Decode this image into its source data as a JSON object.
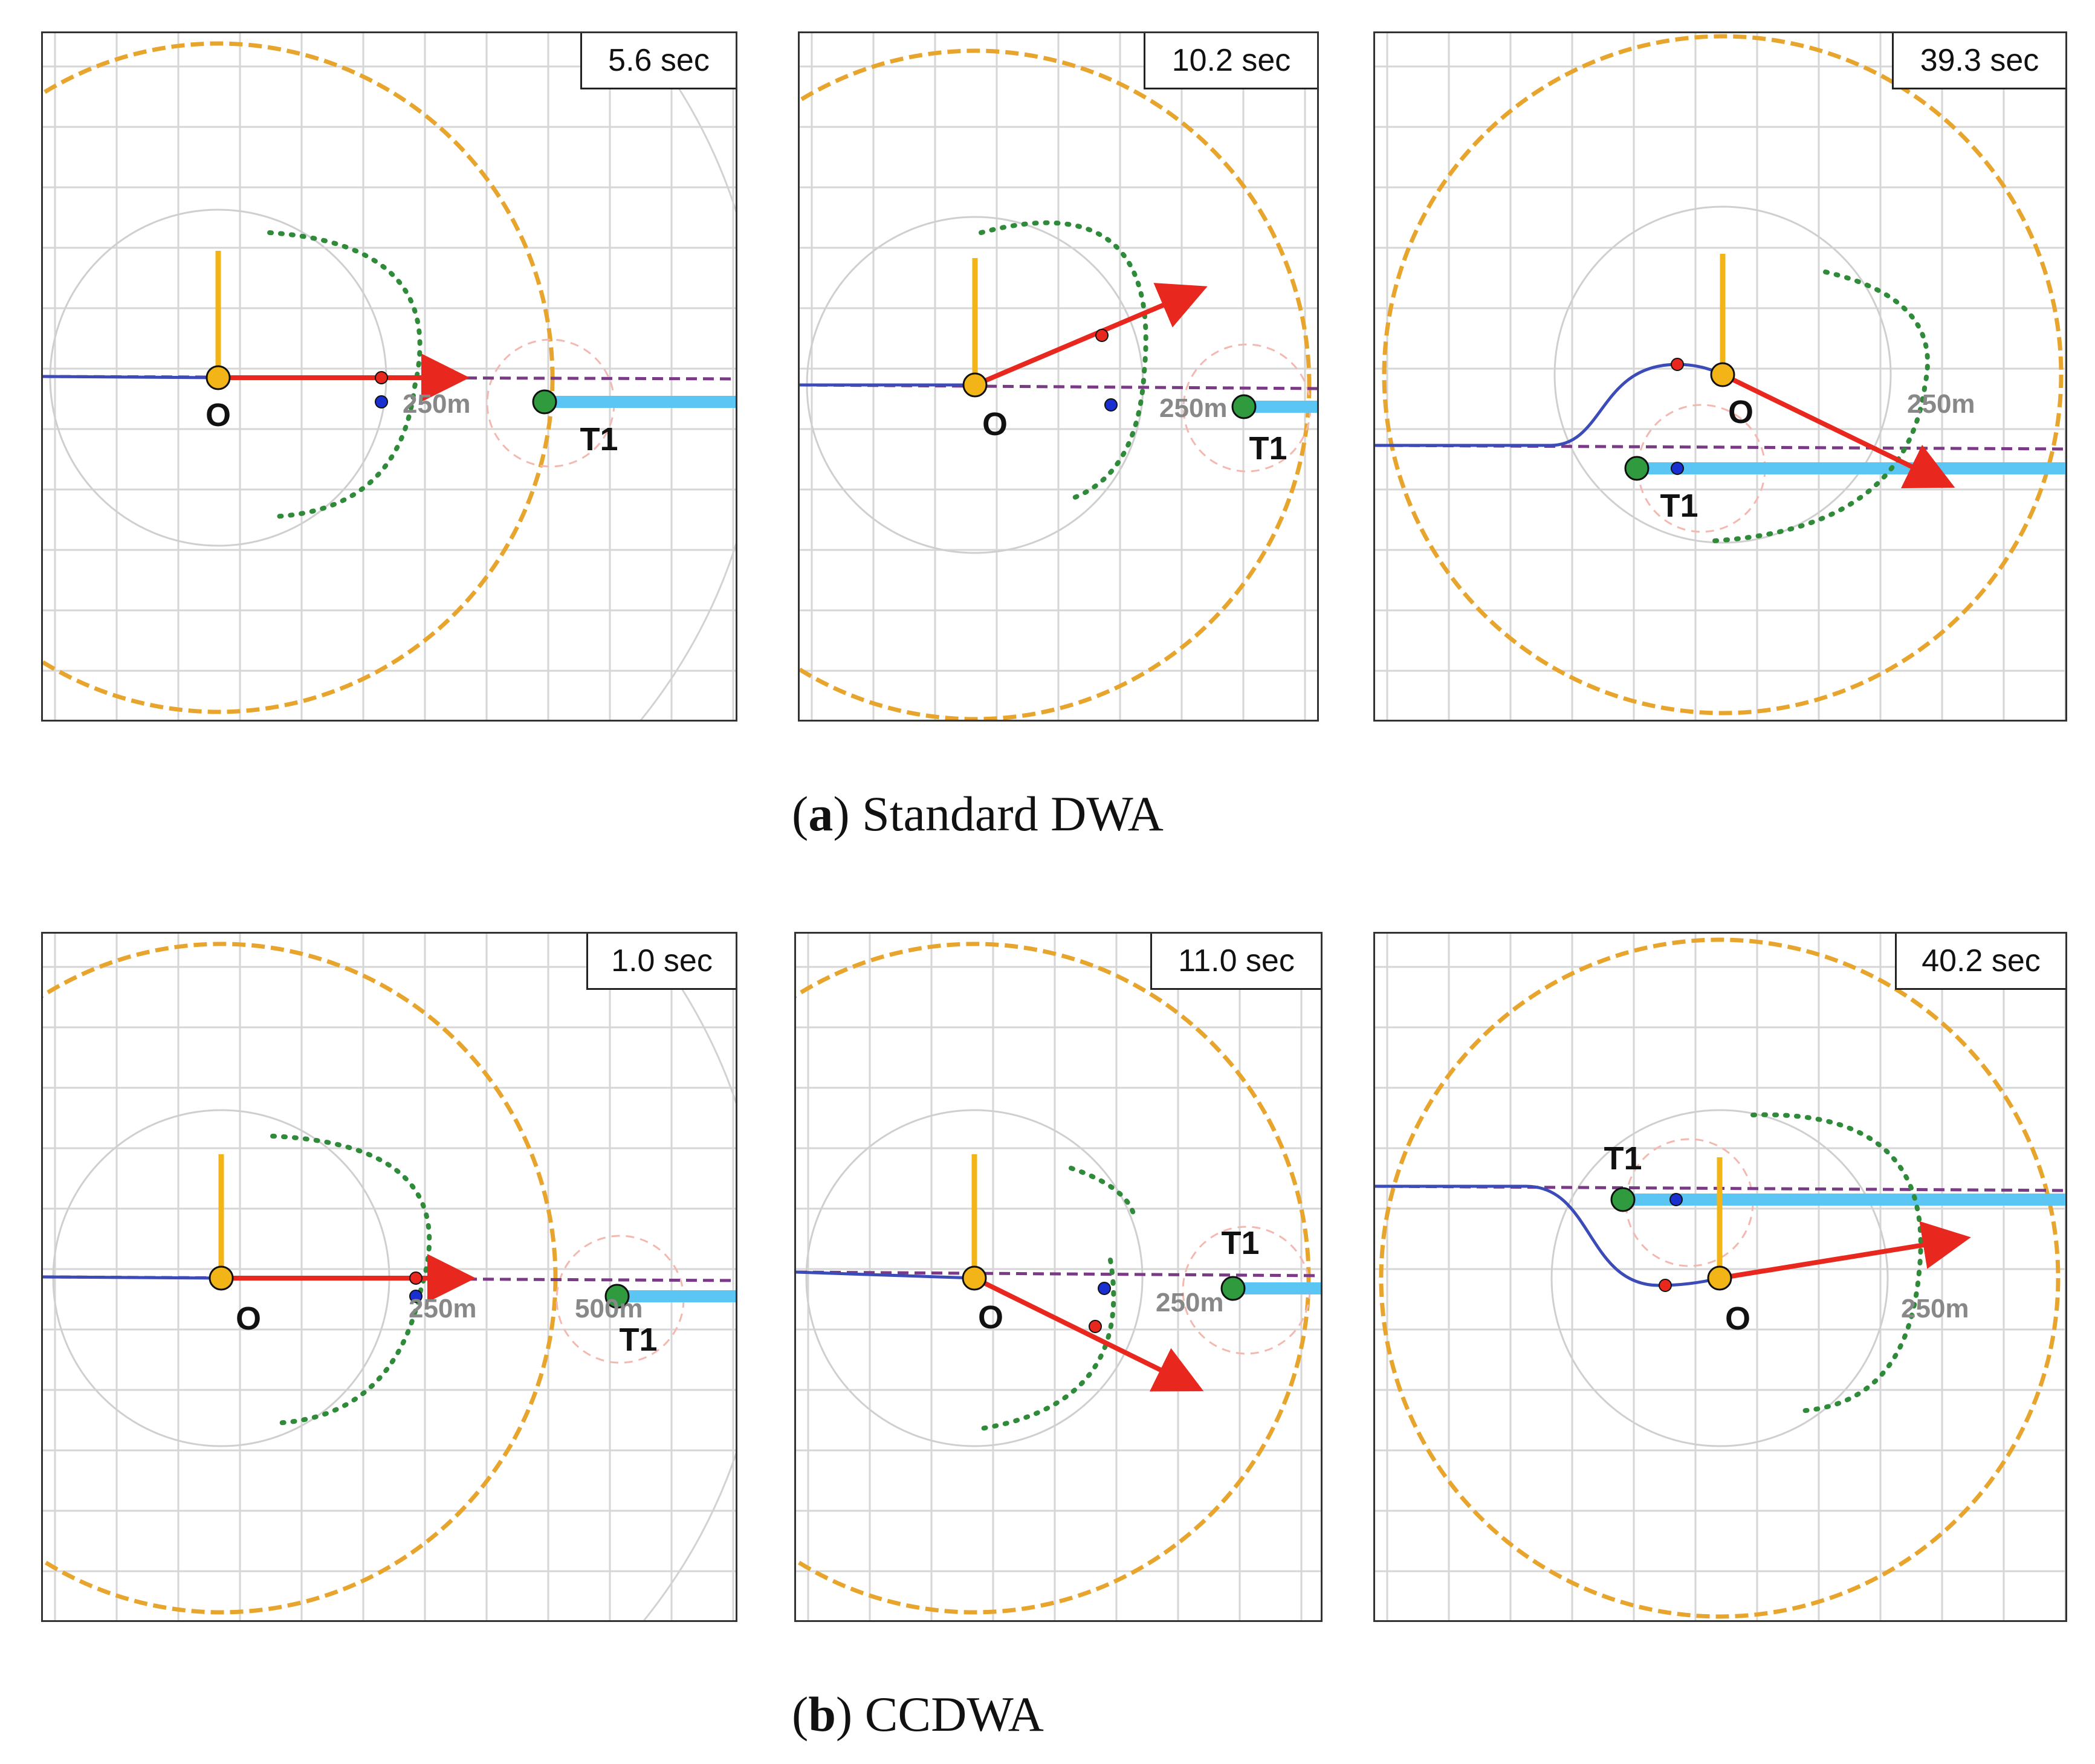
{
  "figure": {
    "row_a": {
      "caption_letter": "a",
      "caption_text": "Standard DWA",
      "panels": [
        {
          "time": "5.6 sec",
          "own_label": "O",
          "target_label": "T1",
          "range_labels": [
            "250m"
          ]
        },
        {
          "time": "10.2 sec",
          "own_label": "O",
          "target_label": "T1",
          "range_labels": [
            "250m"
          ]
        },
        {
          "time": "39.3 sec",
          "own_label": "O",
          "target_label": "T1",
          "range_labels": [
            "250m"
          ]
        }
      ]
    },
    "row_b": {
      "caption_letter": "b",
      "caption_text": "CCDWA",
      "panels": [
        {
          "time": "1.0 sec",
          "own_label": "O",
          "target_label": "T1",
          "range_labels": [
            "250m",
            "500m"
          ]
        },
        {
          "time": "11.0 sec",
          "own_label": "O",
          "target_label": "T1",
          "range_labels": [
            "250m"
          ]
        },
        {
          "time": "40.2 sec",
          "own_label": "O",
          "target_label": "T1",
          "range_labels": [
            "250m"
          ]
        }
      ]
    }
  },
  "colors": {
    "grid": "#d6d6d6",
    "range_ring": "#cfcfcf",
    "safety_circle": "#e8a52e",
    "heading": "#f2b417",
    "velocity": "#e8281e",
    "track": "#3b4bb8",
    "course_line": "#7a3a86",
    "target_path": "#5bc6f3",
    "target": "#2f9a3e",
    "candidates": "#2f8a3a",
    "target_zone": "#f3b8b0"
  }
}
